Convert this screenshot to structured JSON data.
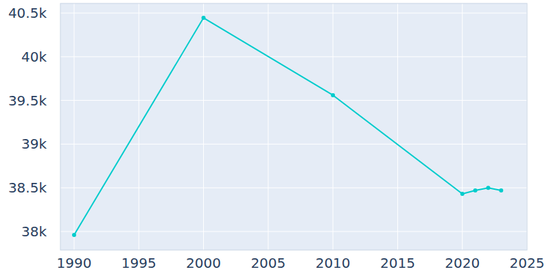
{
  "chart_data": {
    "type": "line",
    "x": [
      1990,
      2000,
      2010,
      2020,
      2021,
      2022,
      2023
    ],
    "values": [
      37960,
      40445,
      39560,
      38431,
      38470,
      38500,
      38470
    ],
    "color": "#00cccc",
    "marker": "circle",
    "xlim": [
      1988.94,
      2025
    ],
    "xticks": [
      1990,
      1995,
      2000,
      2005,
      2010,
      2015,
      2020,
      2025
    ],
    "ylim": [
      37788,
      40610
    ],
    "yticks": [
      {
        "value": 38000,
        "label": "38k"
      },
      {
        "value": 38500,
        "label": "38.5k"
      },
      {
        "value": 39000,
        "label": "39k"
      },
      {
        "value": 39500,
        "label": "39.5k"
      },
      {
        "value": 40000,
        "label": "40k"
      },
      {
        "value": 40500,
        "label": "40.5k"
      }
    ],
    "grid": true
  }
}
